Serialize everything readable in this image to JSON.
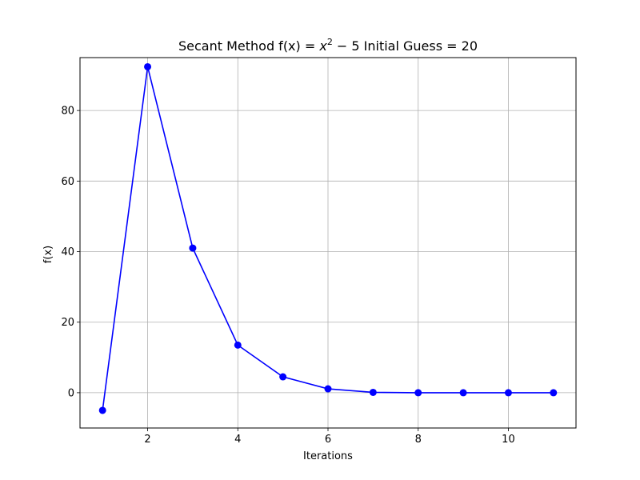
{
  "chart_data": {
    "type": "line",
    "title": {
      "prefix": "Secant Method f(x) = ",
      "var": "x",
      "exp": "2",
      "suffix": " − 5 Initial Guess = 20"
    },
    "xlabel": "Iterations",
    "ylabel": "f(x)",
    "xlim": [
      0.5,
      11.5
    ],
    "ylim": [
      -10,
      95
    ],
    "xticks": [
      2,
      4,
      6,
      8,
      10
    ],
    "yticks": [
      0,
      20,
      40,
      60,
      80
    ],
    "grid": true,
    "series": [
      {
        "color": "#0000ff",
        "marker": "circle",
        "x": [
          1,
          2,
          3,
          4,
          5,
          6,
          7,
          8,
          9,
          10,
          11
        ],
        "y": [
          -5,
          92.4,
          41,
          13.5,
          4.5,
          1.1,
          0.1,
          0,
          0,
          0,
          0
        ]
      }
    ]
  }
}
